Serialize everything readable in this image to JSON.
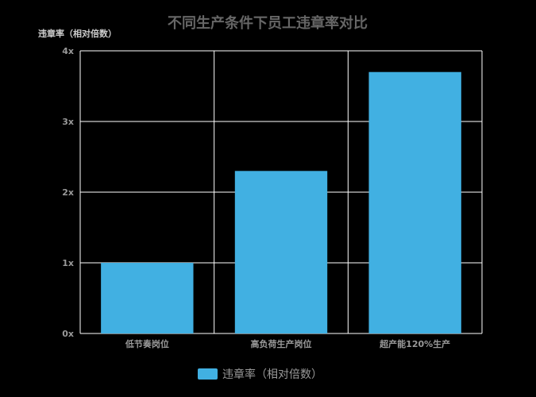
{
  "chart_data": {
    "type": "bar",
    "title": "不同生产条件下员工违章率对比",
    "xlabel": "",
    "ylabel": "违章率（相对倍数）",
    "categories": [
      "低节奏岗位",
      "高负荷生产岗位",
      "超产能120%生产"
    ],
    "series": [
      {
        "name": "违章率（相对倍数）",
        "values": [
          1.0,
          2.3,
          3.7
        ],
        "color": "#41b0e2"
      }
    ],
    "ylim": [
      0,
      4
    ],
    "yticks": [
      0,
      1,
      2,
      3,
      4
    ],
    "ytick_labels": [
      "0x",
      "1x",
      "2x",
      "3x",
      "4x"
    ],
    "grid": true,
    "legend_position": "bottom-center",
    "colors": {
      "background": "#000000",
      "grid": "#ffffff",
      "bar": "#41b0e2"
    }
  }
}
